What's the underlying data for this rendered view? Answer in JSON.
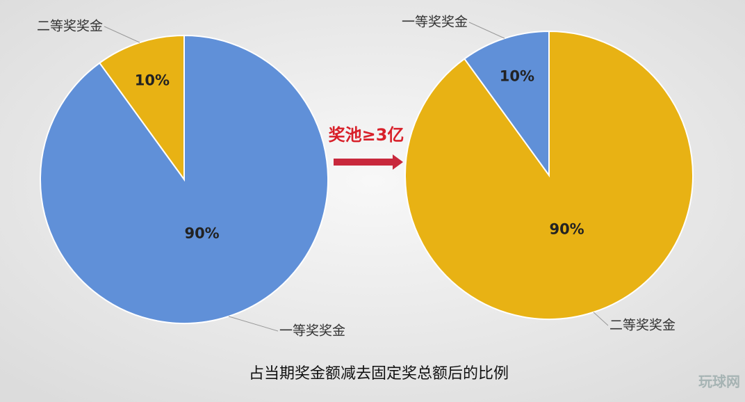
{
  "chart_data": [
    {
      "type": "pie",
      "categories": [
        "一等奖奖金",
        "二等奖奖金"
      ],
      "values": [
        90,
        10
      ],
      "value_labels": [
        "90%",
        "10%"
      ],
      "colors": [
        "#6090d8",
        "#e8b214"
      ]
    },
    {
      "type": "pie",
      "categories": [
        "二等奖奖金",
        "一等奖奖金"
      ],
      "values": [
        90,
        10
      ],
      "value_labels": [
        "90%",
        "10%"
      ],
      "colors": [
        "#e8b214",
        "#6090d8"
      ]
    }
  ],
  "annotation": "奖池≥3亿",
  "caption": "占当期奖金额减去固定奖总额后的比例",
  "watermark": "玩球网"
}
